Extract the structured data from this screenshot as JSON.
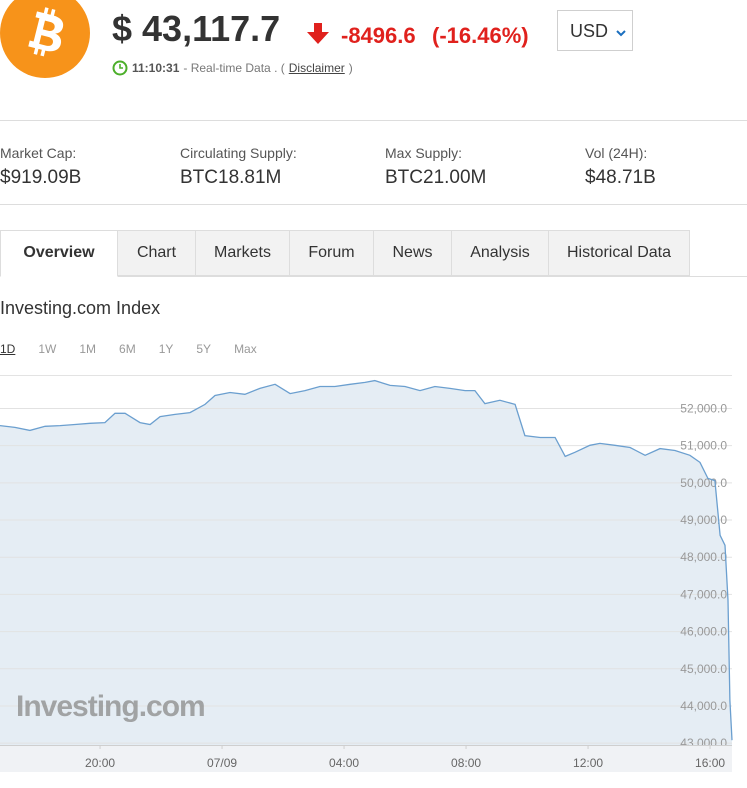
{
  "header": {
    "price": "$ 43,117.7",
    "change": "-8496.6",
    "change_percent": "(-16.46%)",
    "currency": "USD",
    "time": "11:10:31",
    "status": "- Real-time Data . (",
    "disclaimer": "Disclaimer",
    "close": ")"
  },
  "stats": [
    {
      "label": "Market Cap:",
      "value": "$919.09B"
    },
    {
      "label": "Circulating Supply:",
      "value": "BTC18.81M"
    },
    {
      "label": "Max Supply:",
      "value": "BTC21.00M"
    },
    {
      "label": "Vol (24H):",
      "value": "$48.71B"
    }
  ],
  "tabs": [
    "Overview",
    "Chart",
    "Markets",
    "Forum",
    "News",
    "Analysis",
    "Historical Data"
  ],
  "chart_title": "Investing.com Index",
  "ranges": [
    "1D",
    "1W",
    "1M",
    "6M",
    "1Y",
    "5Y",
    "Max"
  ],
  "chart_data": {
    "type": "area",
    "watermark": "Investing.com",
    "color": "#6b9fcf",
    "fill": "#e5edf4",
    "grid": true,
    "x": [
      16.72,
      17.21,
      17.7,
      18.2,
      18.69,
      19.18,
      19.67,
      20.16,
      20.49,
      20.82,
      21.31,
      21.64,
      21.97,
      22.46,
      22.95,
      23.44,
      23.77,
      24.26,
      24.75,
      25.24,
      25.74,
      26.23,
      26.72,
      27.21,
      27.7,
      28.2,
      28.69,
      29.01,
      29.51,
      30.0,
      30.49,
      30.98,
      31.47,
      31.97,
      32.29,
      32.62,
      33.11,
      33.61,
      33.93,
      34.43,
      34.92,
      35.25,
      35.57,
      36.06,
      36.39,
      36.88,
      37.38,
      37.87,
      38.36,
      38.85,
      39.34,
      39.67,
      39.93,
      40.16,
      40.33,
      40.49,
      40.59,
      40.65,
      40.72
    ],
    "values": [
      51540,
      51490,
      51410,
      51520,
      51540,
      51570,
      51600,
      51620,
      51870,
      51870,
      51620,
      51570,
      51780,
      51840,
      51890,
      52110,
      52350,
      52430,
      52380,
      52540,
      52650,
      52400,
      52480,
      52590,
      52590,
      52650,
      52700,
      52750,
      52620,
      52590,
      52480,
      52590,
      52540,
      52480,
      52480,
      52130,
      52220,
      52110,
      51270,
      51220,
      51220,
      50710,
      50820,
      51010,
      51060,
      51010,
      50950,
      50740,
      50920,
      50870,
      50740,
      50550,
      50120,
      50060,
      48590,
      48320,
      46840,
      44150,
      43080
    ],
    "xlim": [
      16.72,
      40.72
    ],
    "ylim": [
      42950,
      52900
    ],
    "xticks": [
      {
        "value": 20,
        "label": "20:00"
      },
      {
        "value": 24,
        "label": "07/09"
      },
      {
        "value": 28,
        "label": "04:00"
      },
      {
        "value": 32,
        "label": "08:00"
      },
      {
        "value": 36,
        "label": "12:00"
      },
      {
        "value": 40,
        "label": "16:00"
      }
    ],
    "yticks": [
      {
        "value": 43000,
        "label": "43,000.0"
      },
      {
        "value": 44000,
        "label": "44,000.0"
      },
      {
        "value": 45000,
        "label": "45,000.0"
      },
      {
        "value": 46000,
        "label": "46,000.0"
      },
      {
        "value": 47000,
        "label": "47,000.0"
      },
      {
        "value": 48000,
        "label": "48,000.0"
      },
      {
        "value": 49000,
        "label": "49,000.0"
      },
      {
        "value": 50000,
        "label": "50,000.0"
      },
      {
        "value": 51000,
        "label": "51,000.0"
      },
      {
        "value": 52000,
        "label": "52,000.0"
      }
    ]
  }
}
